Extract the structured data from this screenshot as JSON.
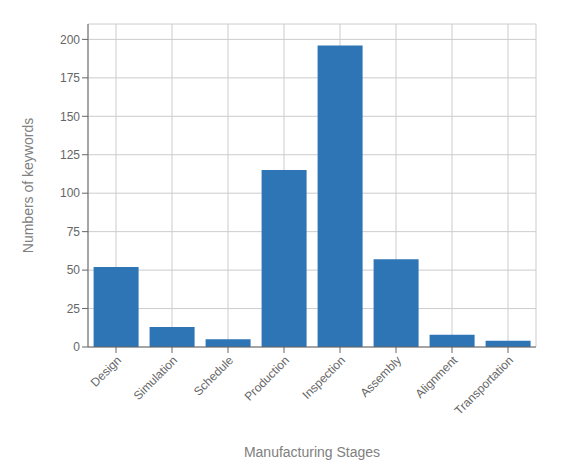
{
  "chart_data": {
    "type": "bar",
    "categories": [
      "Design",
      "Simulation",
      "Schedule",
      "Production",
      "Inspection",
      "Assembly",
      "Alignment",
      "Transportation"
    ],
    "values": [
      52,
      13,
      5,
      115,
      196,
      57,
      8,
      4
    ],
    "color": "#2e75b6",
    "xlabel": "Manufacturing Stages",
    "ylabel": "Numbers of keywords",
    "ylim": [
      0,
      210
    ],
    "yticks": [
      0,
      25,
      50,
      75,
      100,
      125,
      150,
      175,
      200
    ],
    "grid": true
  }
}
